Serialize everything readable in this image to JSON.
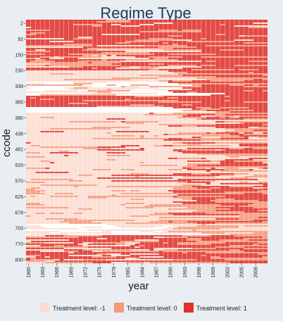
{
  "chart_data": {
    "type": "heatmap",
    "title": "Regime Type",
    "xlabel": "year",
    "ylabel": "ccode",
    "x_ticks": [
      "1960",
      "1963",
      "1966",
      "1969",
      "1972",
      "1975",
      "1978",
      "1981",
      "1984",
      "1987",
      "1990",
      "1993",
      "1996",
      "1999",
      "2002",
      "2005",
      "2008"
    ],
    "y_ticks": [
      "2",
      "92",
      "150",
      "230",
      "339",
      "365",
      "380",
      "436",
      "481",
      "520",
      "570",
      "625",
      "678",
      "703",
      "770",
      "830"
    ],
    "x_range": [
      1960,
      2010
    ],
    "legend": {
      "position": "bottom",
      "entries": [
        {
          "label": "Treatment level: -1",
          "value": -1,
          "color": "#fcdccf"
        },
        {
          "label": "Treatment level: 0",
          "value": 0,
          "color": "#f6977a"
        },
        {
          "label": "Treatment level: 1",
          "value": 1,
          "color": "#e0302b"
        }
      ]
    },
    "missing_color": "#ffffff",
    "grid": false
  }
}
